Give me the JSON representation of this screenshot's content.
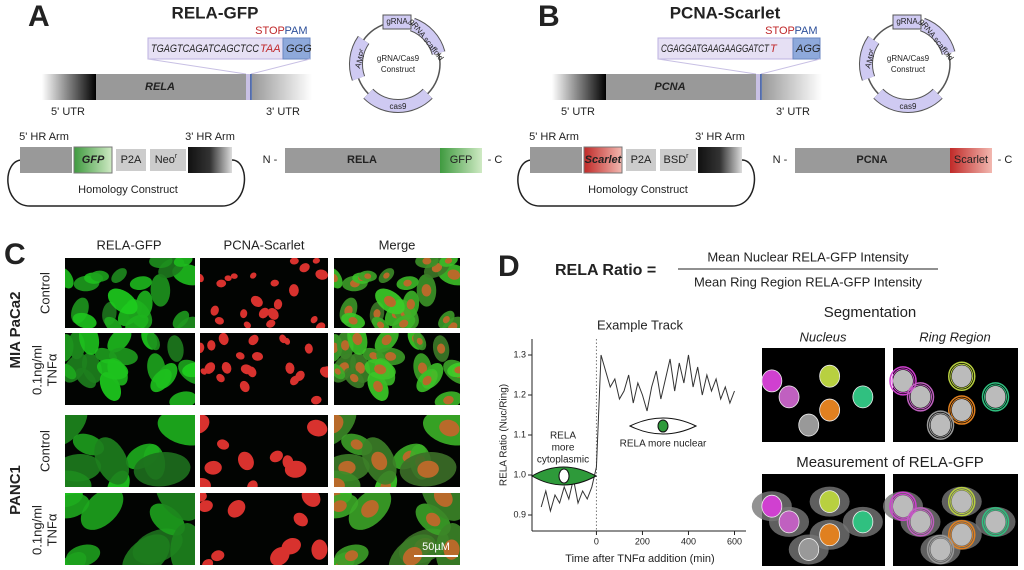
{
  "panel_a": {
    "letter": "A",
    "title": "RELA-GFP",
    "stop": "STOP",
    "pam": "PAM",
    "sequence": "TGAGTCAGATCAGCTCC",
    "stop_codon": "TAA",
    "pam_seq": "GGG",
    "utr5": "5' UTR",
    "gene": "RELA",
    "utr3": "3' UTR",
    "plasmid": {
      "grna": "gRNA",
      "scaffold": "gRNA scaffold",
      "amp": "AMP",
      "amp_sup": "r",
      "name": [
        "gRNA/Cas9",
        "Construct"
      ],
      "cas9": "cas9"
    },
    "hr5": "5' HR Arm",
    "tag": "GFP",
    "p2a": "P2A",
    "marker": "Neo",
    "marker_sup": "r",
    "hr3": "3' HR Arm",
    "homology": "Homology Construct",
    "n_term": "N -",
    "protein": "RELA",
    "protein_tag": "GFP",
    "c_term": "- C"
  },
  "panel_b": {
    "letter": "B",
    "title": "PCNA-Scarlet",
    "stop": "STOP",
    "pam": "PAM",
    "sequence": "CGAGGATGAAGAAGGATCT",
    "stop_codon": "T",
    "pam_seq": "AGG",
    "utr5": "5' UTR",
    "gene": "PCNA",
    "utr3": "3' UTR",
    "plasmid": {
      "grna": "gRNA",
      "scaffold": "gRNA scaffold",
      "amp": "AMP",
      "amp_sup": "r",
      "name": [
        "gRNA/Cas9",
        "Construct"
      ],
      "cas9": "cas9"
    },
    "hr5": "5' HR Arm",
    "tag": "Scarlet",
    "p2a": "P2A",
    "marker": "BSD",
    "marker_sup": "r",
    "hr3": "3' HR Arm",
    "homology": "Homology Construct",
    "n_term": "N -",
    "protein": "PCNA",
    "protein_tag": "Scarlet",
    "c_term": "- C"
  },
  "panel_c": {
    "letter": "C",
    "columns": [
      "RELA-GFP",
      "PCNA-Scarlet",
      "Merge"
    ],
    "cell_lines": [
      "MIA PaCa2",
      "PANC1"
    ],
    "conditions": [
      [
        "Control"
      ],
      [
        "0.1ng/ml",
        "TNFα"
      ],
      [
        "Control"
      ],
      [
        "0.1ng/ml",
        "TNFα"
      ]
    ],
    "scale_bar": "50µM"
  },
  "panel_d": {
    "letter": "D",
    "ratio_label": "RELA Ratio =",
    "numerator": "Mean Nuclear RELA-GFP Intensity",
    "denominator": "Mean Ring Region RELA-GFP Intensity",
    "segmentation": "Segmentation",
    "nucleus": "Nucleus",
    "ring_region": "Ring Region",
    "measurement": "Measurement of RELA-GFP"
  },
  "chart_data": {
    "type": "line",
    "title": "Example Track",
    "x_label": "Time after TNFα addition (min)",
    "y_label": "RELA Ratio (Nuc/Ring)",
    "x": [
      -240,
      -220,
      -200,
      -180,
      -160,
      -140,
      -120,
      -100,
      -80,
      -60,
      -40,
      -20,
      0,
      20,
      40,
      60,
      80,
      100,
      120,
      140,
      160,
      180,
      200,
      220,
      240,
      260,
      280,
      300,
      320,
      340,
      360,
      380,
      400,
      420,
      440,
      460,
      480,
      500,
      520,
      540,
      560,
      580,
      600
    ],
    "series": [
      {
        "color": "#333333",
        "values": [
          0.92,
          0.96,
          0.91,
          0.95,
          0.93,
          0.97,
          0.94,
          0.99,
          0.93,
          0.96,
          0.94,
          0.97,
          1.02,
          1.3,
          1.26,
          1.22,
          1.24,
          1.19,
          1.21,
          1.25,
          1.18,
          1.23,
          1.2,
          1.16,
          1.22,
          1.26,
          1.19,
          1.24,
          1.29,
          1.21,
          1.28,
          1.23,
          1.3,
          1.22,
          1.27,
          1.2,
          1.25,
          1.21,
          1.24,
          1.19,
          1.22,
          1.18,
          1.21
        ]
      }
    ],
    "xlim": [
      -280,
      650
    ],
    "ylim": [
      0.86,
      1.34
    ],
    "xticks": [
      0,
      200,
      400,
      600
    ],
    "yticks": [
      0.9,
      {
        "value": 1,
        "label": "1.0"
      },
      1.1,
      1.2,
      1.3
    ],
    "vline": 0,
    "annotations": [
      [
        "RELA",
        "more",
        "cytoplasmic"
      ],
      [
        "RELA more nuclear"
      ]
    ]
  }
}
